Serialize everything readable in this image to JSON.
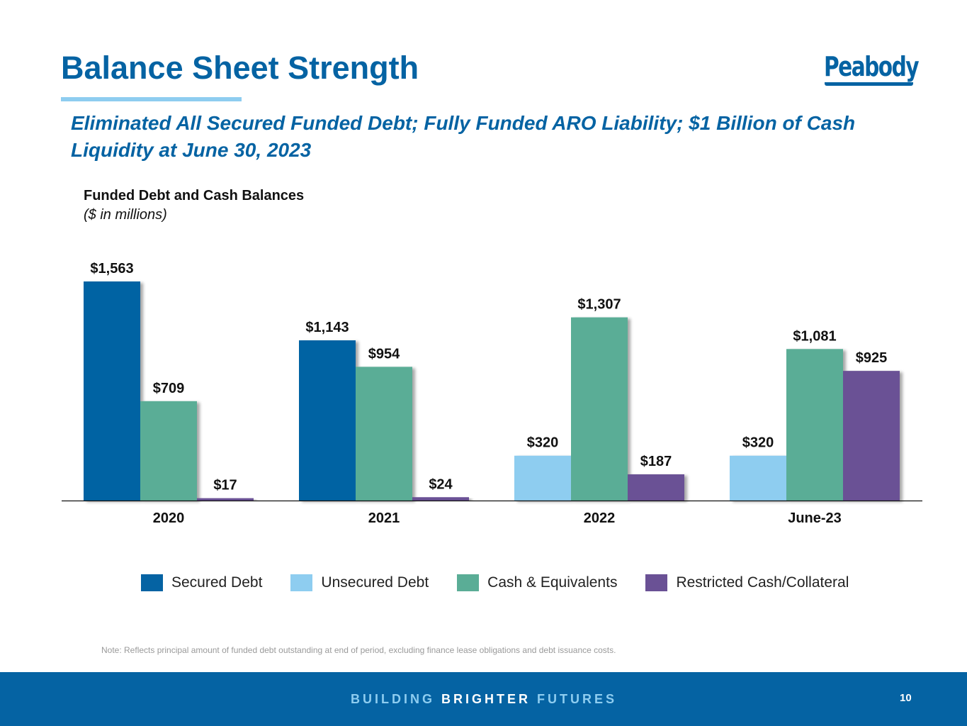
{
  "header": {
    "title": "Balance Sheet Strength",
    "logo_text": "Peabody",
    "subtitle": "Eliminated All Secured Funded Debt; Fully Funded ARO Liability; $1 Billion of Cash Liquidity at June 30, 2023"
  },
  "colors": {
    "brand_blue": "#0563a3",
    "accent_light_blue": "#8ecdf0"
  },
  "chart_data": {
    "type": "bar",
    "title": "Funded Debt and Cash Balances",
    "subtitle": "($ in millions)",
    "xlabel": "",
    "ylabel": "",
    "ylim": [
      0,
      1563
    ],
    "grid": false,
    "legend_position": "bottom",
    "categories": [
      "2020",
      "2021",
      "2022",
      "June-23"
    ],
    "series": [
      {
        "name": "Secured Debt",
        "color": "#0563a3",
        "values": [
          1563,
          1143,
          null,
          null
        ]
      },
      {
        "name": "Unsecured Debt",
        "color": "#8ecdf0",
        "values": [
          null,
          null,
          320,
          320
        ]
      },
      {
        "name": "Cash & Equivalents",
        "color": "#5aad96",
        "values": [
          709,
          954,
          1307,
          1081
        ]
      },
      {
        "name": "Restricted Cash/Collateral",
        "color": "#6a5195",
        "values": [
          17,
          24,
          187,
          925
        ]
      }
    ],
    "groups": [
      {
        "category": "2020",
        "bars": [
          {
            "series": "Secured Debt",
            "value": 1563,
            "label": "$1,563"
          },
          {
            "series": "Cash & Equivalents",
            "value": 709,
            "label": "$709"
          },
          {
            "series": "Restricted Cash/Collateral",
            "value": 17,
            "label": "$17"
          }
        ]
      },
      {
        "category": "2021",
        "bars": [
          {
            "series": "Secured Debt",
            "value": 1143,
            "label": "$1,143"
          },
          {
            "series": "Cash & Equivalents",
            "value": 954,
            "label": "$954"
          },
          {
            "series": "Restricted Cash/Collateral",
            "value": 24,
            "label": "$24"
          }
        ]
      },
      {
        "category": "2022",
        "bars": [
          {
            "series": "Unsecured Debt",
            "value": 320,
            "label": "$320"
          },
          {
            "series": "Cash & Equivalents",
            "value": 1307,
            "label": "$1,307"
          },
          {
            "series": "Restricted Cash/Collateral",
            "value": 187,
            "label": "$187"
          }
        ]
      },
      {
        "category": "June-23",
        "bars": [
          {
            "series": "Unsecured Debt",
            "value": 320,
            "label": "$320"
          },
          {
            "series": "Cash & Equivalents",
            "value": 1081,
            "label": "$1,081"
          },
          {
            "series": "Restricted Cash/Collateral",
            "value": 925,
            "label": "$925"
          }
        ]
      }
    ]
  },
  "legend": [
    {
      "label": "Secured Debt",
      "color": "#0563a3"
    },
    {
      "label": "Unsecured Debt",
      "color": "#8ecdf0"
    },
    {
      "label": "Cash & Equivalents",
      "color": "#5aad96"
    },
    {
      "label": "Restricted Cash/Collateral",
      "color": "#6a5195"
    }
  ],
  "note": "Note: Reflects principal amount of funded debt outstanding at end of period, excluding finance lease obligations and debt issuance costs.",
  "footer": {
    "tagline_part1": "BUILDING ",
    "tagline_part2": "BRIGHTER",
    "tagline_part3": " FUTURES",
    "page_number": "10"
  }
}
